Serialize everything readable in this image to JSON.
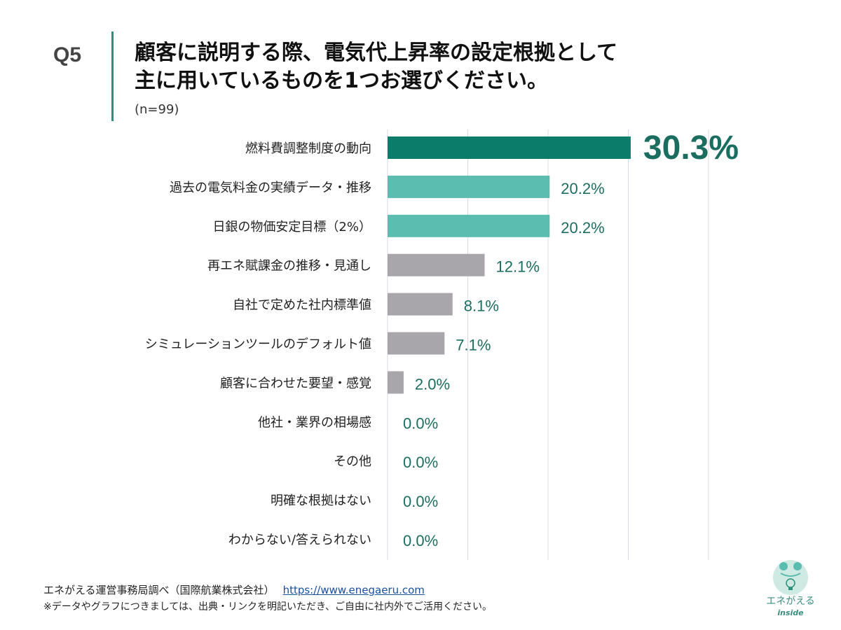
{
  "header": {
    "question_no": "Q5",
    "title_line1": "顧客に説明する際、電気代上昇率の設定根拠として",
    "title_line2": "主に用いているものを1つお選びください。",
    "sample": "(n=99)"
  },
  "chart_data": {
    "type": "bar",
    "orientation": "horizontal",
    "categories": [
      "燃料費調整制度の動向",
      "過去の電気料金の実績データ・推移",
      "日銀の物価安定目標（2%）",
      "再エネ賦課金の推移・見通し",
      "自社で定めた社内標準値",
      "シミュレーションツールのデフォルト値",
      "顧客に合わせた要望・感覚",
      "他社・業界の相場感",
      "その他",
      "明確な根拠はない",
      "わからない/答えられない"
    ],
    "values": [
      30.3,
      20.2,
      20.2,
      12.1,
      8.1,
      7.1,
      2.0,
      0.0,
      0.0,
      0.0,
      0.0
    ],
    "value_labels": [
      "30.3%",
      "20.2%",
      "20.2%",
      "12.1%",
      "8.1%",
      "7.1%",
      "2.0%",
      "0.0%",
      "0.0%",
      "0.0%",
      "0.0%"
    ],
    "unit": "%",
    "xlim": [
      0,
      40
    ],
    "grid": true,
    "colors": {
      "top": "#0b7b6a",
      "second": "#5bbcb0",
      "other": "#a8a5ab",
      "label": "#1b6e5f"
    }
  },
  "footer": {
    "source": "エネがえる運営事務局調べ（国際航業株式会社）",
    "url": "https://www.enegaeru.com",
    "note": "※データやグラフにつきましては、出典・リンクを明記いただき、ご自由に社内外でご活用ください。"
  },
  "logo": {
    "text": "エネがえる",
    "sub": "inside"
  }
}
